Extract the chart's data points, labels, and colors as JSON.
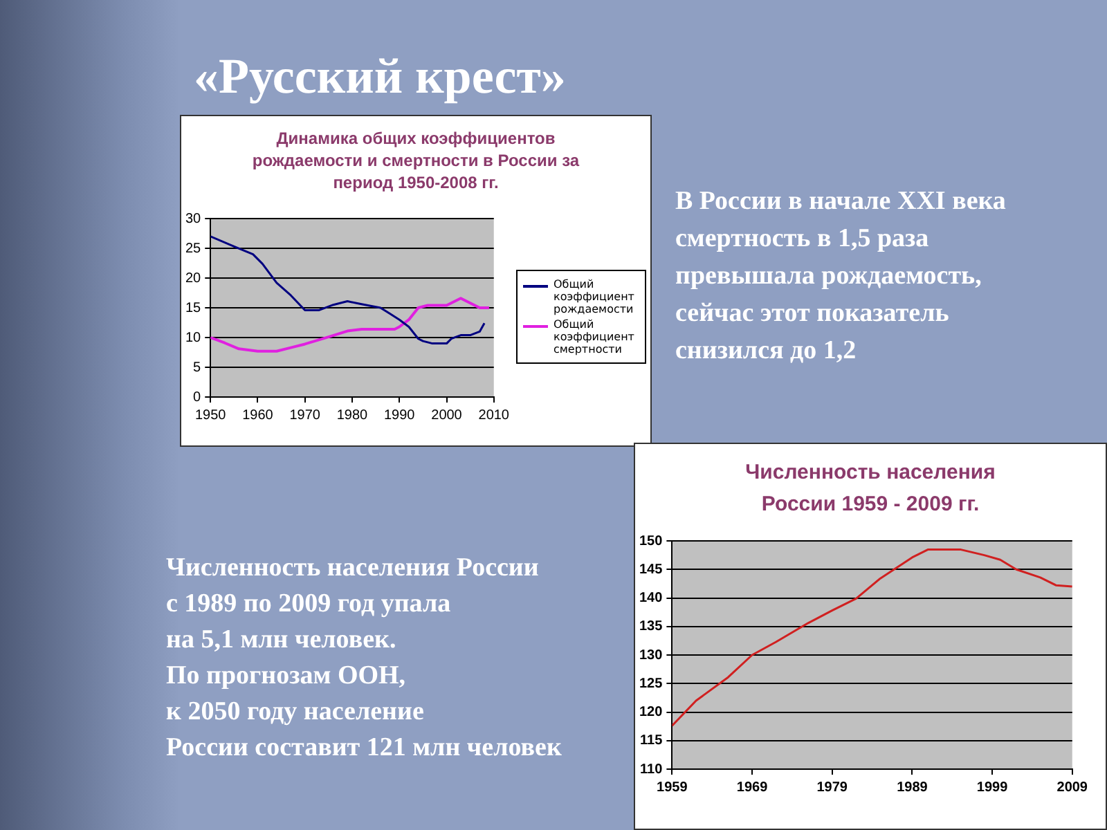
{
  "chart_data": [
    {
      "type": "line",
      "title": "Динамика общих коэффициентов рождаемости и смертности в России за период 1950-2008 гг.",
      "legend": "right",
      "grid": "y",
      "xlim": [
        1950,
        2010
      ],
      "xticks": [
        1950,
        1960,
        1970,
        1980,
        1990,
        2000,
        2010
      ],
      "ylim": [
        0,
        30
      ],
      "yticks": [
        0,
        5,
        10,
        15,
        20,
        25,
        30
      ],
      "series": [
        {
          "name": "Общий коэффициент рождаемости",
          "color": "#000080",
          "x": [
            1950,
            1955,
            1959,
            1961,
            1964,
            1967,
            1970,
            1973,
            1976,
            1979,
            1982,
            1986,
            1988,
            1990,
            1992,
            1994,
            1995,
            1997,
            2000,
            2001,
            2003,
            2005,
            2007,
            2008
          ],
          "values": [
            27,
            25.3,
            24,
            22.4,
            19.2,
            17.1,
            14.6,
            14.6,
            15.5,
            16.1,
            15.6,
            15,
            14,
            13,
            11.8,
            9.8,
            9.4,
            9,
            9,
            9.8,
            10.4,
            10.4,
            11,
            12.4
          ]
        },
        {
          "name": "Общий коэффициент смертности",
          "color": "#e020e0",
          "x": [
            1950,
            1953,
            1956,
            1960,
            1964,
            1967,
            1970,
            1975,
            1979,
            1982,
            1989,
            1990,
            1992,
            1994,
            1996,
            2000,
            2003,
            2004,
            2007,
            2009
          ],
          "values": [
            10,
            9.1,
            8.1,
            7.7,
            7.7,
            8.3,
            8.9,
            10.1,
            11.1,
            11.4,
            11.4,
            11.8,
            13,
            15,
            15.4,
            15.4,
            16.6,
            16.2,
            15,
            15
          ]
        }
      ]
    },
    {
      "type": "line",
      "title": "Численность населения России 1959 - 2009 гг.",
      "grid": "y",
      "xlim": [
        1959,
        2009
      ],
      "xticks": [
        1959,
        1969,
        1979,
        1989,
        1999,
        2009
      ],
      "ylim": [
        110,
        150
      ],
      "yticks": [
        110,
        115,
        120,
        125,
        130,
        135,
        140,
        145,
        150
      ],
      "series": [
        {
          "color": "#d02020",
          "x": [
            1959,
            1962,
            1966,
            1969,
            1972,
            1976,
            1979,
            1982,
            1985,
            1989,
            1991,
            1995,
            1998,
            2000,
            2002,
            2005,
            2007,
            2009
          ],
          "values": [
            117.6,
            122,
            126.1,
            130,
            132.3,
            135.6,
            137.8,
            139.9,
            143.4,
            147.1,
            148.5,
            148.5,
            147.5,
            146.7,
            145,
            143.6,
            142.2,
            142
          ]
        }
      ]
    },
    {
      "type": "other",
      "title": "«Русский крест»",
      "annotations": [
        "В России в начале XXI века\nсмертность в 1,5 раза\nпревышала рождаемость,\nсейчас этот показатель\nснизился до 1,2",
        "Численность населения России\nс 1989 по 2009 год упала\nна 5,1 млн человек.\nПо прогнозам ООН,\nк 2050 году население\nРоссии составит 121 млн человек"
      ]
    }
  ]
}
